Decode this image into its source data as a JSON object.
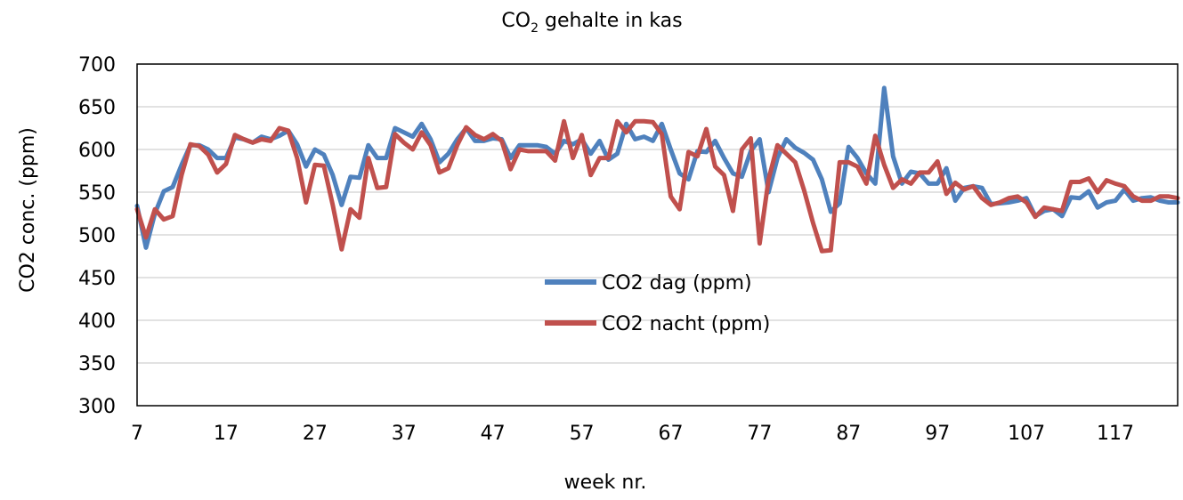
{
  "chart_data": {
    "type": "line",
    "title": {
      "prefix": "CO",
      "subscript": "2",
      "suffix": " gehalte in kas"
    },
    "xlabel": "week nr.",
    "ylabel": "CO2 conc. (ppm)",
    "xlim": [
      7,
      124
    ],
    "ylim": [
      300,
      700
    ],
    "yticks": [
      300,
      350,
      400,
      450,
      500,
      550,
      600,
      650,
      700
    ],
    "xticks": [
      7,
      17,
      27,
      37,
      47,
      57,
      67,
      77,
      87,
      97,
      107,
      117
    ],
    "grid": "horizontal",
    "legend_position": "center",
    "series": [
      {
        "name": "CO2 dag (ppm)",
        "color": "#4f81bd",
        "x": [
          7,
          8,
          9,
          10,
          11,
          12,
          13,
          14,
          15,
          16,
          17,
          18,
          19,
          20,
          21,
          22,
          23,
          24,
          25,
          26,
          27,
          28,
          29,
          30,
          31,
          32,
          33,
          34,
          35,
          36,
          37,
          38,
          39,
          40,
          41,
          42,
          43,
          44,
          45,
          46,
          47,
          48,
          49,
          50,
          51,
          52,
          53,
          54,
          55,
          56,
          57,
          58,
          59,
          60,
          61,
          62,
          63,
          64,
          65,
          66,
          67,
          68,
          69,
          70,
          71,
          72,
          73,
          74,
          75,
          76,
          77,
          78,
          79,
          80,
          81,
          82,
          83,
          84,
          85,
          86,
          87,
          88,
          89,
          90,
          91,
          92,
          93,
          94,
          95,
          96,
          97,
          98,
          99,
          100,
          101,
          102,
          103,
          104,
          105,
          106,
          107,
          108,
          109,
          110,
          111,
          112,
          113,
          114,
          115,
          116,
          117,
          118,
          119,
          120,
          121,
          122,
          123,
          124
        ],
        "values": [
          534,
          485,
          525,
          551,
          556,
          582,
          605,
          605,
          600,
          590,
          590,
          614,
          612,
          608,
          615,
          612,
          616,
          622,
          606,
          580,
          600,
          594,
          570,
          535,
          568,
          567,
          605,
          590,
          590,
          625,
          620,
          615,
          630,
          612,
          585,
          595,
          612,
          625,
          610,
          610,
          613,
          612,
          590,
          605,
          605,
          605,
          603,
          595,
          610,
          606,
          612,
          595,
          610,
          588,
          595,
          630,
          612,
          615,
          610,
          630,
          600,
          572,
          565,
          598,
          597,
          610,
          590,
          572,
          568,
          598,
          612,
          550,
          590,
          612,
          602,
          596,
          588,
          565,
          527,
          537,
          603,
          590,
          572,
          560,
          672,
          592,
          560,
          574,
          572,
          560,
          560,
          578,
          540,
          555,
          557,
          555,
          536,
          537,
          538,
          540,
          543,
          522,
          528,
          530,
          522,
          544,
          543,
          551,
          532,
          538,
          540,
          553,
          540,
          543,
          544,
          540,
          538,
          538
        ]
      },
      {
        "name": "CO2 nacht (ppm)",
        "color": "#c0504d",
        "x": [
          7,
          8,
          9,
          10,
          11,
          12,
          13,
          14,
          15,
          16,
          17,
          18,
          19,
          20,
          21,
          22,
          23,
          24,
          25,
          26,
          27,
          28,
          29,
          30,
          31,
          32,
          33,
          34,
          35,
          36,
          37,
          38,
          39,
          40,
          41,
          42,
          43,
          44,
          45,
          46,
          47,
          48,
          49,
          50,
          51,
          52,
          53,
          54,
          55,
          56,
          57,
          58,
          59,
          60,
          61,
          62,
          63,
          64,
          65,
          66,
          67,
          68,
          69,
          70,
          71,
          72,
          73,
          74,
          75,
          76,
          77,
          78,
          79,
          80,
          81,
          82,
          83,
          84,
          85,
          86,
          87,
          88,
          89,
          90,
          91,
          92,
          93,
          94,
          95,
          96,
          97,
          98,
          99,
          100,
          101,
          102,
          103,
          104,
          105,
          106,
          107,
          108,
          109,
          110,
          111,
          112,
          113,
          114,
          115,
          116,
          117,
          118,
          119,
          120,
          121,
          122,
          123,
          124
        ],
        "values": [
          530,
          497,
          530,
          518,
          522,
          570,
          606,
          604,
          594,
          573,
          583,
          617,
          612,
          608,
          612,
          610,
          625,
          622,
          590,
          538,
          582,
          581,
          535,
          483,
          530,
          520,
          590,
          555,
          556,
          618,
          608,
          600,
          620,
          605,
          573,
          578,
          605,
          626,
          617,
          612,
          618,
          610,
          577,
          600,
          598,
          598,
          598,
          587,
          633,
          590,
          617,
          570,
          590,
          590,
          633,
          620,
          633,
          633,
          632,
          618,
          545,
          530,
          597,
          592,
          624,
          580,
          570,
          528,
          600,
          613,
          490,
          565,
          605,
          595,
          585,
          552,
          514,
          481,
          482,
          585,
          585,
          580,
          560,
          616,
          582,
          555,
          565,
          560,
          573,
          573,
          586,
          548,
          561,
          553,
          557,
          543,
          535,
          538,
          543,
          545,
          538,
          521,
          532,
          530,
          528,
          562,
          562,
          566,
          550,
          564,
          560,
          557,
          545,
          540,
          540,
          545,
          545,
          543
        ]
      }
    ]
  }
}
